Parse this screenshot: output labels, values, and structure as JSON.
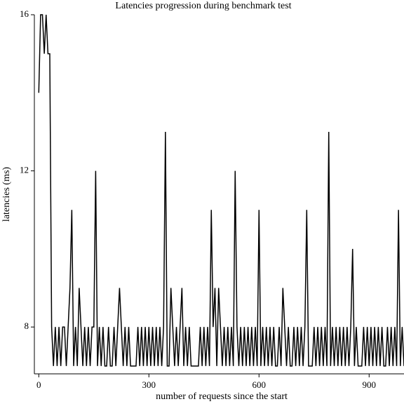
{
  "chart_data": {
    "type": "line",
    "title": "Latencies progression during benchmark test",
    "x_label": "number of requests since the start",
    "y_label": "latencies (ms)",
    "x": [
      0,
      5,
      10,
      15,
      20,
      25,
      30,
      35,
      40,
      45,
      50,
      55,
      60,
      65,
      70,
      75,
      80,
      85,
      90,
      95,
      100,
      105,
      110,
      115,
      120,
      125,
      130,
      135,
      140,
      145,
      150,
      155,
      160,
      165,
      170,
      175,
      180,
      185,
      190,
      195,
      200,
      205,
      210,
      215,
      220,
      225,
      230,
      235,
      240,
      245,
      250,
      255,
      260,
      265,
      270,
      275,
      280,
      285,
      290,
      295,
      300,
      305,
      310,
      315,
      320,
      325,
      330,
      335,
      340,
      345,
      350,
      355,
      360,
      365,
      370,
      375,
      380,
      385,
      390,
      395,
      400,
      405,
      410,
      415,
      420,
      425,
      430,
      435,
      440,
      445,
      450,
      455,
      460,
      465,
      470,
      475,
      480,
      485,
      490,
      495,
      500,
      505,
      510,
      515,
      520,
      525,
      530,
      535,
      540,
      545,
      550,
      555,
      560,
      565,
      570,
      575,
      580,
      585,
      590,
      595,
      600,
      605,
      610,
      615,
      620,
      625,
      630,
      635,
      640,
      645,
      650,
      655,
      660,
      665,
      670,
      675,
      680,
      685,
      690,
      695,
      700,
      705,
      710,
      715,
      720,
      725,
      730,
      735,
      740,
      745,
      750,
      755,
      760,
      765,
      770,
      775,
      780,
      785,
      790,
      795,
      800,
      805,
      810,
      815,
      820,
      825,
      830,
      835,
      840,
      845,
      850,
      855,
      860,
      865,
      870,
      875,
      880,
      885,
      890,
      895,
      900,
      905,
      910,
      915,
      920,
      925,
      930,
      935,
      940,
      945,
      950,
      955,
      960,
      965,
      970,
      975,
      980,
      985,
      990,
      995
    ],
    "values": [
      14,
      16,
      16,
      15,
      16,
      15,
      15,
      8,
      7,
      8,
      7,
      8,
      7,
      8,
      8,
      7,
      8,
      9,
      11,
      7,
      8,
      7,
      9,
      8,
      7,
      8,
      7,
      8,
      7,
      8,
      8,
      12,
      7,
      8,
      7,
      8,
      7,
      7,
      8,
      7,
      7,
      8,
      7,
      8,
      9,
      8,
      7,
      8,
      7,
      8,
      7,
      7,
      7,
      7,
      8,
      7,
      8,
      7,
      8,
      7,
      8,
      7,
      8,
      7,
      8,
      7,
      8,
      7,
      8,
      13,
      7,
      7,
      9,
      8,
      7,
      8,
      7,
      8,
      9,
      7,
      8,
      7,
      8,
      7,
      7,
      7,
      7,
      7,
      8,
      7,
      8,
      7,
      8,
      7,
      11,
      8,
      9,
      7,
      9,
      8,
      7,
      8,
      7,
      8,
      7,
      8,
      7,
      12,
      8,
      7,
      8,
      7,
      8,
      7,
      8,
      7,
      8,
      7,
      8,
      7,
      11,
      7,
      8,
      7,
      8,
      7,
      8,
      7,
      8,
      7,
      7,
      8,
      7,
      9,
      8,
      7,
      8,
      7,
      7,
      8,
      7,
      8,
      7,
      8,
      7,
      8,
      11,
      7,
      7,
      7,
      8,
      7,
      8,
      7,
      8,
      7,
      8,
      7,
      13,
      7,
      8,
      7,
      8,
      7,
      8,
      7,
      8,
      7,
      8,
      7,
      8,
      10,
      7,
      8,
      7,
      7,
      7,
      8,
      7,
      8,
      7,
      8,
      7,
      8,
      7,
      8,
      7,
      8,
      7,
      7,
      8,
      7,
      8,
      7,
      8,
      7,
      11,
      7,
      8,
      7
    ],
    "color": "#000000",
    "xlim": [
      -12,
      995
    ],
    "xticks": [
      0,
      300,
      600,
      900
    ],
    "ylim": [
      6.8,
      16
    ],
    "yticks": [
      8,
      12,
      16
    ]
  }
}
